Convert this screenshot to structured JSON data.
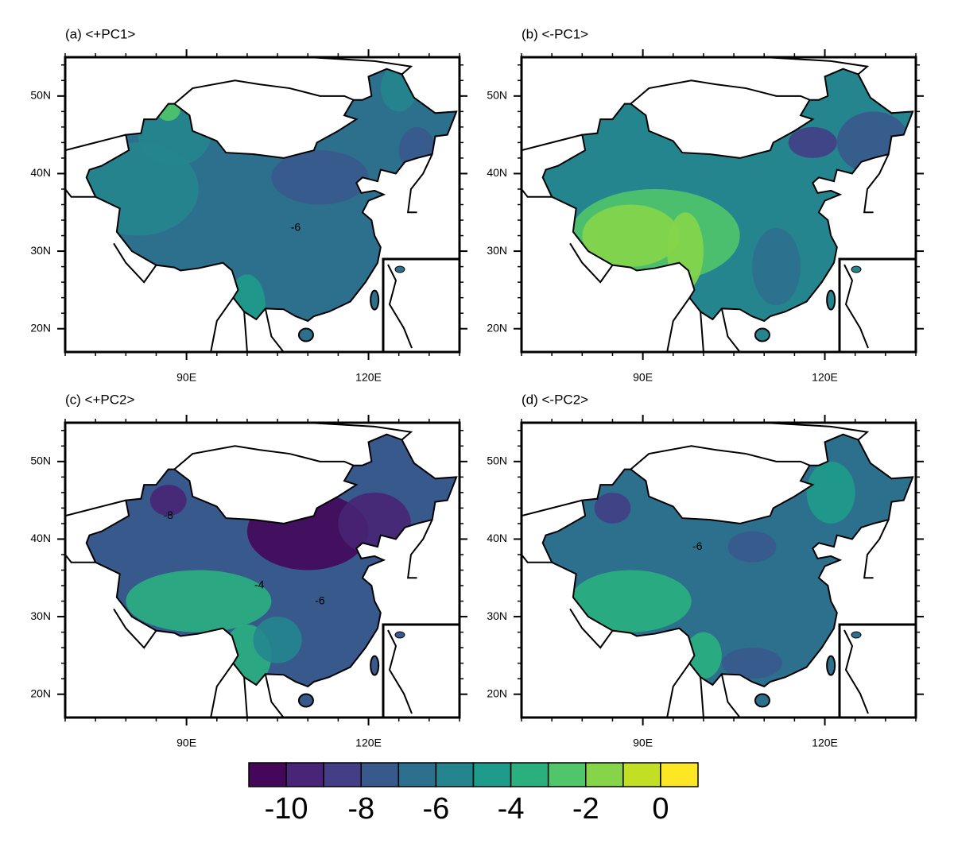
{
  "panels": [
    {
      "title": "(a) <+PC1>",
      "contour_labels": [
        -6
      ]
    },
    {
      "title": "(b) <-PC1>",
      "contour_labels": []
    },
    {
      "title": "(c) <+PC2>",
      "contour_labels": [
        -8,
        -4,
        -6
      ]
    },
    {
      "title": "(d) <-PC2>",
      "contour_labels": [
        -6
      ]
    }
  ],
  "map": {
    "xlim": [
      70,
      135
    ],
    "ylim": [
      17,
      55
    ],
    "xticks": [
      {
        "value": 90,
        "label": "90E"
      },
      {
        "value": 120,
        "label": "120E"
      }
    ],
    "yticks": [
      {
        "value": 20,
        "label": "20N"
      },
      {
        "value": 30,
        "label": "30N"
      },
      {
        "value": 40,
        "label": "40N"
      },
      {
        "value": 50,
        "label": "50N"
      }
    ]
  },
  "colorbar": {
    "levels": [
      -10,
      -9,
      -8,
      -7,
      -6,
      -5,
      -4,
      -3,
      -2,
      -1,
      0
    ],
    "ticks": [
      -10,
      -8,
      -6,
      -4,
      -2,
      0
    ],
    "colors": [
      "#45075a",
      "#482576",
      "#433e85",
      "#38598c",
      "#2d708e",
      "#25858e",
      "#1e9b8a",
      "#2ab07f",
      "#51c56a",
      "#86d549",
      "#c2df23",
      "#fde725"
    ]
  }
}
